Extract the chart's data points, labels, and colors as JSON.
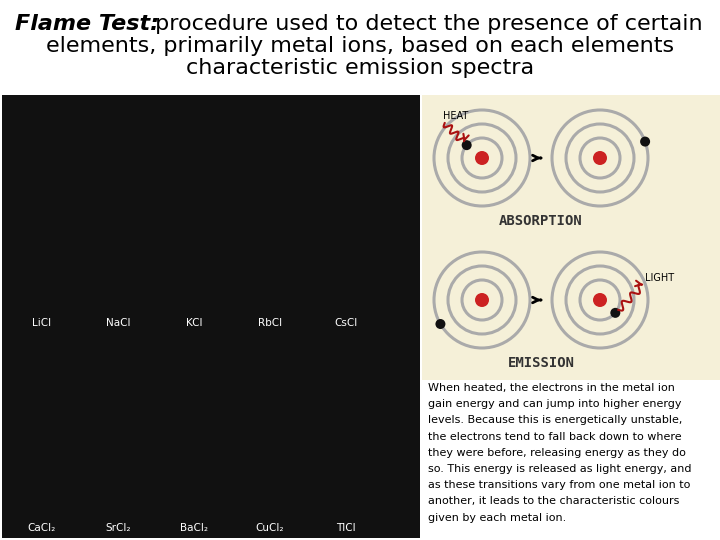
{
  "title_bold": "Flame Test:",
  "title_line1_rest": " procedure used to detect the presence of certain",
  "title_line2": "elements, primarily metal ions, based on each elements",
  "title_line3": "characteristic emission spectra",
  "absorption_label": "ABSORPTION",
  "emission_label": "EMISSION",
  "heat_label": "HEAT",
  "light_label": "LIGHT",
  "bg_color": "#ffffff",
  "diagram_bg": "#f5f0d8",
  "nucleus_color": "#cc2222",
  "electron_color": "#111111",
  "orbit_color": "#aaaaaa",
  "wave_color": "#aa1111",
  "title_fontsize": 16,
  "body_fontsize": 8.0,
  "label_fontsize": 10,
  "labels_top": [
    "LiCl",
    "NaCl",
    "KCl",
    "RbCl",
    "CsCl"
  ],
  "labels_bot": [
    "CaCl₂",
    "SrCl₂",
    "BaCl₂",
    "CuCl₂",
    "TlCl"
  ],
  "body_lines": [
    "When heated, the electrons in the metal ion",
    "gain energy and can jump into higher energy",
    "levels. Because this is energetically unstable,",
    "the electrons tend to fall back down to where",
    "they were before, releasing energy as they do",
    "so. This energy is released as light energy, and",
    "as these transitions vary from one metal ion to",
    "another, it leads to the characteristic colours",
    "given by each metal ion."
  ]
}
